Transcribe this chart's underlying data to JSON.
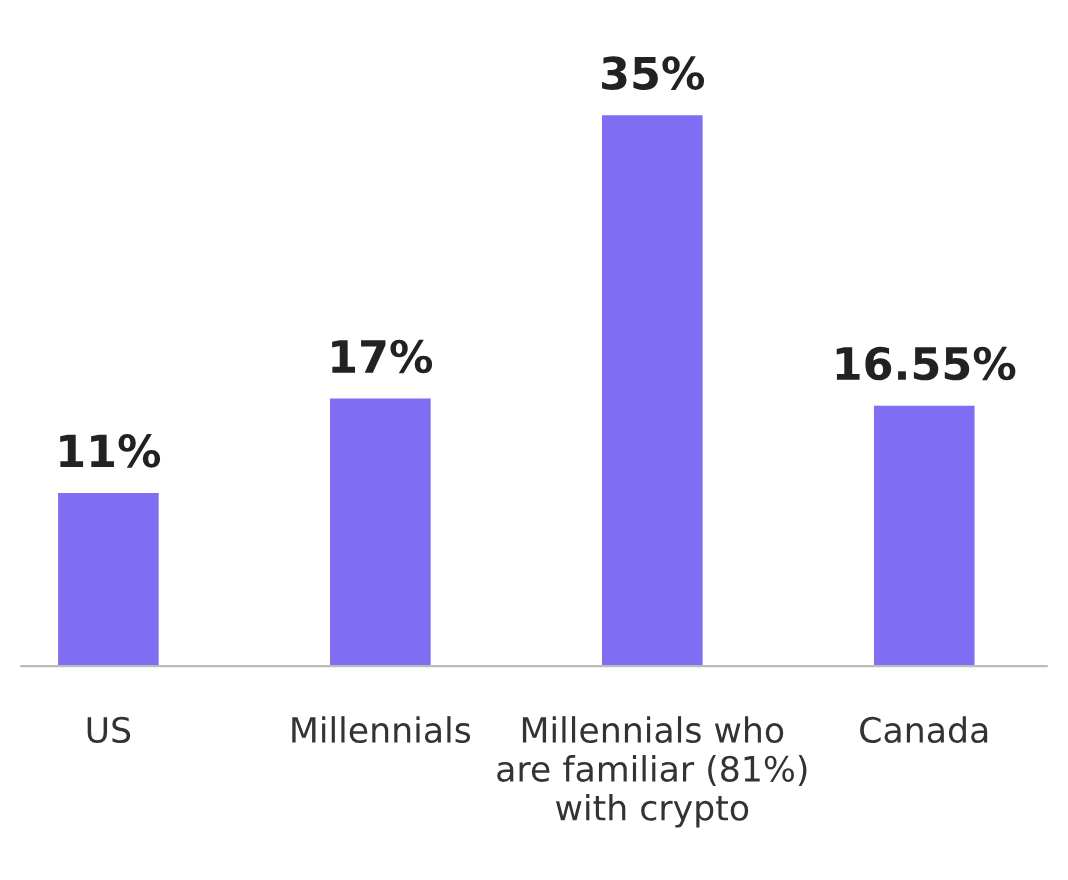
{
  "chart_data": {
    "type": "bar",
    "categories": [
      "US",
      "Millennials",
      "Millennials who\nare familiar (81%)\nwith crypto",
      "Canada"
    ],
    "values": [
      11,
      17,
      35,
      16.55
    ],
    "value_labels": [
      "11%",
      "17%",
      "35%",
      "16.55%"
    ],
    "color": "#7f6df2",
    "grid": false,
    "legend": false
  }
}
